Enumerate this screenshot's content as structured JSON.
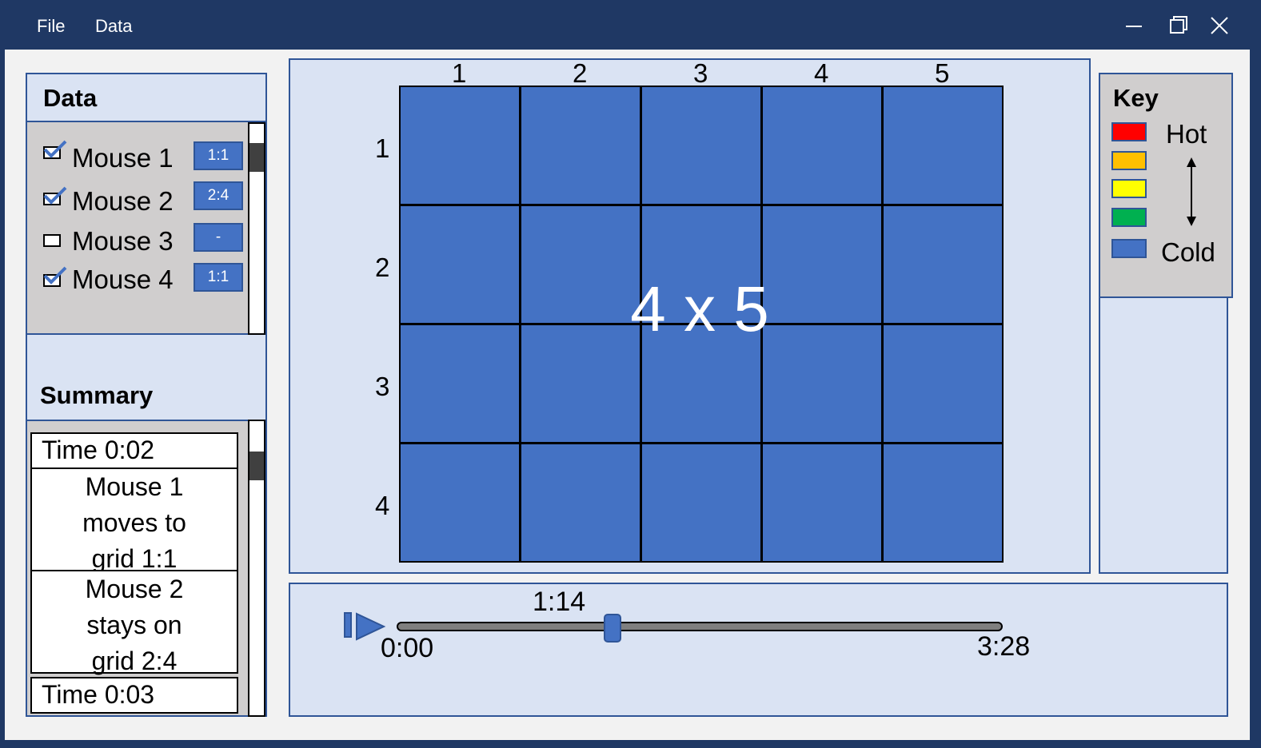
{
  "menu": {
    "file": "File",
    "data": "Data"
  },
  "data_panel": {
    "title": "Data",
    "mice": [
      {
        "label": "Mouse 1",
        "checked": true,
        "cell": "1:1"
      },
      {
        "label": "Mouse 2",
        "checked": true,
        "cell": "2:4"
      },
      {
        "label": "Mouse 3",
        "checked": false,
        "cell": "-"
      },
      {
        "label": "Mouse 4",
        "checked": true,
        "cell": "1:1"
      }
    ]
  },
  "summary": {
    "title": "Summary",
    "entries": [
      {
        "time": "Time 0:02",
        "events": [
          "Mouse 1 moves to grid 1:1",
          "Mouse 2 stays on grid 2:4"
        ]
      },
      {
        "time": "Time 0:03"
      }
    ],
    "event_lines": [
      [
        "Mouse 1",
        "moves to",
        "grid 1:1"
      ],
      [
        "Mouse 2",
        "stays on",
        "grid 2:4"
      ]
    ]
  },
  "grid": {
    "caption": "4 x 5",
    "columns": [
      "1",
      "2",
      "3",
      "4",
      "5"
    ],
    "rows": [
      "1",
      "2",
      "3",
      "4"
    ],
    "cell_color": "#4472c4"
  },
  "key": {
    "title": "Key",
    "hot_label": "Hot",
    "cold_label": "Cold",
    "colors": [
      "#ff0000",
      "#ffc000",
      "#ffff00",
      "#00b050",
      "#4472c4"
    ]
  },
  "playback": {
    "current": "1:14",
    "start": "0:00",
    "end": "3:28",
    "progress": 0.356
  },
  "colors": {
    "titlebar": "#1f3864",
    "panel": "#dae3f3",
    "border": "#2f5597",
    "accent": "#4472c4"
  }
}
